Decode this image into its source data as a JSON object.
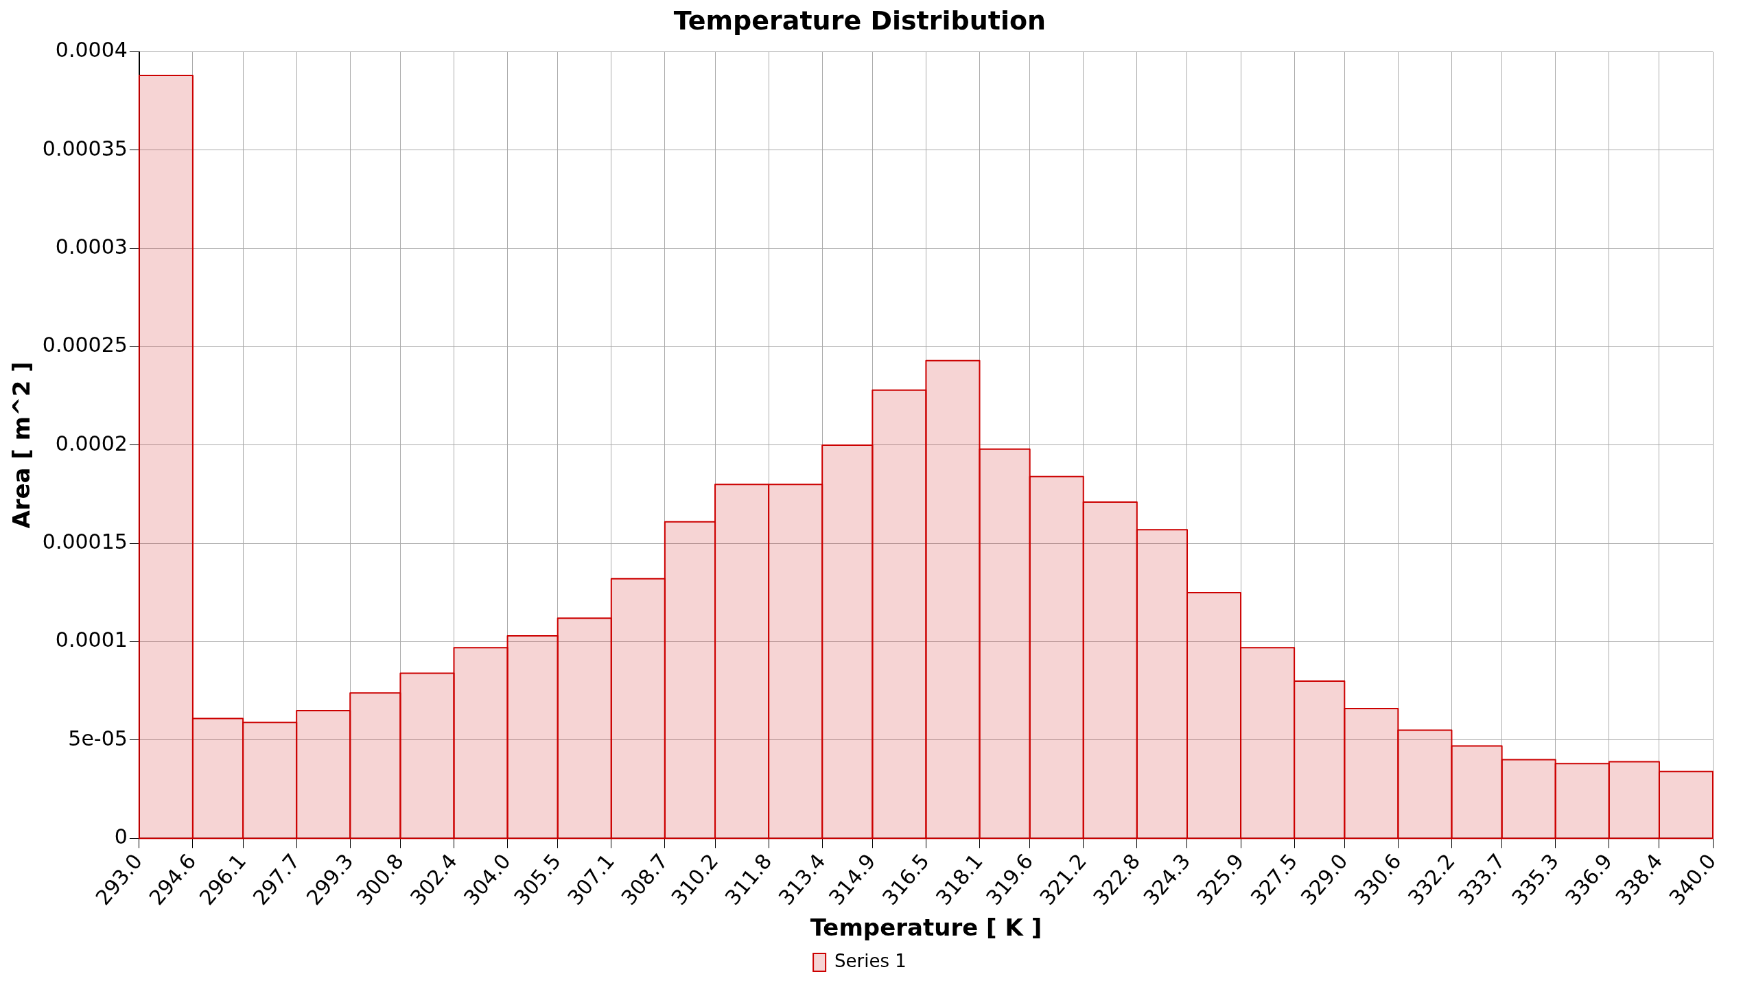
{
  "chart_data": {
    "type": "histogram",
    "title": "Temperature Distribution",
    "xlabel": "Temperature [ K ]",
    "ylabel": "Area [ m^2 ]",
    "bins": [
      293.0,
      294.6,
      296.1,
      297.7,
      299.3,
      300.8,
      302.4,
      304.0,
      305.5,
      307.1,
      308.7,
      310.2,
      311.8,
      313.4,
      314.9,
      316.5,
      318.1,
      319.6,
      321.2,
      322.8,
      324.3,
      325.9,
      327.5,
      329.0,
      330.6,
      332.2,
      333.7,
      335.3,
      336.9,
      338.4,
      340.0
    ],
    "xticks": [
      {
        "value": 293.0,
        "label": "293.0"
      },
      294.6,
      296.1,
      297.7,
      299.3,
      300.8,
      302.4,
      {
        "value": 304.0,
        "label": "304.0"
      },
      305.5,
      307.1,
      308.7,
      310.2,
      311.8,
      313.4,
      314.9,
      316.5,
      318.1,
      319.6,
      321.2,
      322.8,
      324.3,
      325.9,
      327.5,
      {
        "value": 329.0,
        "label": "329.0"
      },
      330.6,
      332.2,
      333.7,
      335.3,
      336.9,
      338.4,
      {
        "value": 340.0,
        "label": "340.0"
      }
    ],
    "series": [
      {
        "name": "Series 1",
        "color": "#cc0000",
        "values": [
          0.000388,
          6.1e-05,
          5.9e-05,
          6.5e-05,
          7.4e-05,
          8.4e-05,
          9.7e-05,
          0.000103,
          0.000112,
          0.000132,
          0.000161,
          0.00018,
          0.00018,
          0.0002,
          0.000228,
          0.000243,
          0.000198,
          0.000184,
          0.000171,
          0.000157,
          0.000125,
          9.7e-05,
          8e-05,
          6.6e-05,
          5.5e-05,
          4.7e-05,
          4e-05,
          3.8e-05,
          3.9e-05,
          3.4e-05
        ]
      }
    ],
    "xlim": [
      293.0,
      340.0
    ],
    "ylim": [
      0,
      0.0004
    ],
    "yticks": [
      0,
      {
        "value": 5e-05,
        "label": "5e-05"
      },
      0.0001,
      0.00015,
      0.0002,
      0.00025,
      0.0003,
      0.00035,
      0.0004
    ],
    "grid": true,
    "legend": "bottom"
  }
}
